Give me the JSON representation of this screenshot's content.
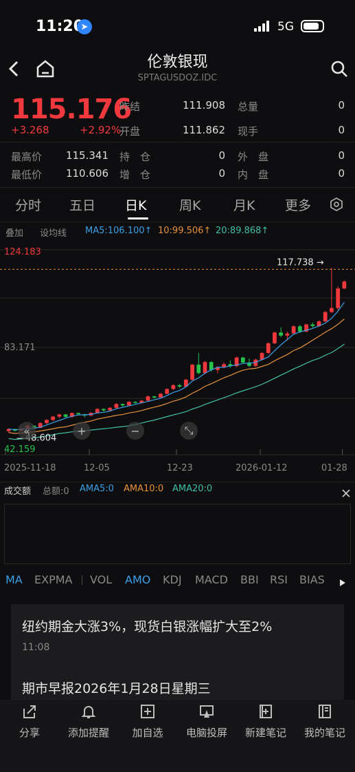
{
  "status_bar": {
    "time": "11:20",
    "network": "5G"
  },
  "header": {
    "title": "伦敦银现",
    "subtitle": "SPTAGUSDOZ.IDC"
  },
  "quote": {
    "price": "115.176",
    "change": "+3.268",
    "change_pct": "+2.92%",
    "rows": [
      {
        "label": "昨结",
        "value": "111.908",
        "label2": "总量",
        "value2": "0"
      },
      {
        "label": "开盘",
        "value": "111.862",
        "label2": "现手",
        "value2": "0"
      }
    ],
    "stats": [
      {
        "label": "最高价",
        "value": "115.341",
        "label2": "持　仓",
        "value2": "0",
        "label3": "外　盘",
        "value3": "0"
      },
      {
        "label": "最低价",
        "value": "110.606",
        "label2": "增　仓",
        "value2": "0",
        "label3": "内　盘",
        "value3": "0"
      }
    ]
  },
  "tabs": [
    "分时",
    "五日",
    "日K",
    "周K",
    "月K",
    "更多"
  ],
  "active_tab": "日K",
  "chart_toolbar": {
    "overlay": "叠加",
    "ma_setting": "设均线",
    "ma5": "MA5:106.100↑",
    "ma10": "10:99.506↑",
    "ma20": "20:89.868↑"
  },
  "chart_data": {
    "type": "candlestick",
    "y_labels": {
      "top": "124.183",
      "mid": "83.171",
      "bottom": "42.159"
    },
    "ylim": [
      42.159,
      124.183
    ],
    "max_marker": "117.738",
    "min_marker": "48.604",
    "x_labels": [
      "2025-11-18",
      "12-05",
      "12-23",
      "2026-01-12",
      "01-28"
    ],
    "candles": [
      [
        49.2,
        50.4,
        48.6,
        50.1
      ],
      [
        50.1,
        50.2,
        49.0,
        49.4
      ],
      [
        49.4,
        50.5,
        49.0,
        50.3
      ],
      [
        50.3,
        51.8,
        50.0,
        51.5
      ],
      [
        51.5,
        51.7,
        50.3,
        50.6
      ],
      [
        50.6,
        52.9,
        50.4,
        52.6
      ],
      [
        52.6,
        54.2,
        52.0,
        53.9
      ],
      [
        53.9,
        55.6,
        53.4,
        55.3
      ],
      [
        55.3,
        56.5,
        54.6,
        56.2
      ],
      [
        56.2,
        56.4,
        54.9,
        55.2
      ],
      [
        55.2,
        57.1,
        54.8,
        56.8
      ],
      [
        56.8,
        57.0,
        55.9,
        56.3
      ],
      [
        56.3,
        56.5,
        55.0,
        55.8
      ],
      [
        55.8,
        57.1,
        55.4,
        56.9
      ],
      [
        56.9,
        58.9,
        56.5,
        58.5
      ],
      [
        58.5,
        58.8,
        57.4,
        57.9
      ],
      [
        57.9,
        59.3,
        57.6,
        59.0
      ],
      [
        59.0,
        61.0,
        58.6,
        60.6
      ],
      [
        60.6,
        60.8,
        59.5,
        60.0
      ],
      [
        60.0,
        61.8,
        59.8,
        61.5
      ],
      [
        61.5,
        61.8,
        60.7,
        61.1
      ],
      [
        61.1,
        62.3,
        60.9,
        62.0
      ],
      [
        62.0,
        64.1,
        61.6,
        63.8
      ],
      [
        63.8,
        64.1,
        62.9,
        63.3
      ],
      [
        63.3,
        65.2,
        63.0,
        64.9
      ],
      [
        64.9,
        67.2,
        64.6,
        66.9
      ],
      [
        66.9,
        68.9,
        66.4,
        68.5
      ],
      [
        68.5,
        69.0,
        67.3,
        67.9
      ],
      [
        67.9,
        71.2,
        67.6,
        70.8
      ],
      [
        70.8,
        77.5,
        70.3,
        77.1
      ],
      [
        77.1,
        82.0,
        73.0,
        73.6
      ],
      [
        73.6,
        78.6,
        73.1,
        78.2
      ],
      [
        78.2,
        78.6,
        74.2,
        74.9
      ],
      [
        74.9,
        76.5,
        73.5,
        76.1
      ],
      [
        76.1,
        78.0,
        75.6,
        77.3
      ],
      [
        77.3,
        78.9,
        75.8,
        76.5
      ],
      [
        76.5,
        80.5,
        76.1,
        80.1
      ],
      [
        80.1,
        80.4,
        77.4,
        78.0
      ],
      [
        78.0,
        79.7,
        76.1,
        76.6
      ],
      [
        76.6,
        79.6,
        76.2,
        79.2
      ],
      [
        79.2,
        82.4,
        78.9,
        82.0
      ],
      [
        82.0,
        86.5,
        81.6,
        86.1
      ],
      [
        86.1,
        90.9,
        85.7,
        90.6
      ],
      [
        90.6,
        92.8,
        88.6,
        89.3
      ],
      [
        89.3,
        91.0,
        87.3,
        90.2
      ],
      [
        90.2,
        93.6,
        90.0,
        93.2
      ],
      [
        93.2,
        93.8,
        90.5,
        91.0
      ],
      [
        91.0,
        94.3,
        90.7,
        94.0
      ],
      [
        94.0,
        94.8,
        92.6,
        93.3
      ],
      [
        93.3,
        95.7,
        93.0,
        95.3
      ],
      [
        95.3,
        99.6,
        95.0,
        99.2
      ],
      [
        99.2,
        117.7,
        98.8,
        100.9
      ],
      [
        100.9,
        110.0,
        99.8,
        109.1
      ],
      [
        109.1,
        112.5,
        108.8,
        112.0
      ]
    ]
  },
  "volume": {
    "title": "成交额",
    "total": "总额:0",
    "ama5": "AMA5:0",
    "ama10": "AMA10:0",
    "ama20": "AMA20:0"
  },
  "indicators": [
    "MA",
    "EXPMA",
    "VOL",
    "AMO",
    "KDJ",
    "MACD",
    "BBI",
    "RSI",
    "BIAS"
  ],
  "news": [
    {
      "title": "纽约期金大涨3%，现货白银涨幅扩大至2%",
      "time": "11:08"
    },
    {
      "title": "期市早报2026年1月28日星期三"
    }
  ],
  "bottom_bar": [
    "分享",
    "添加提醒",
    "加自选",
    "电脑投屏",
    "新建笔记",
    "我的笔记"
  ],
  "colors": {
    "up": "#f0393f",
    "down": "#27c24c",
    "ma5": "#3aa0e8",
    "ma10": "#e8913a",
    "ma20": "#3fbfa8"
  }
}
